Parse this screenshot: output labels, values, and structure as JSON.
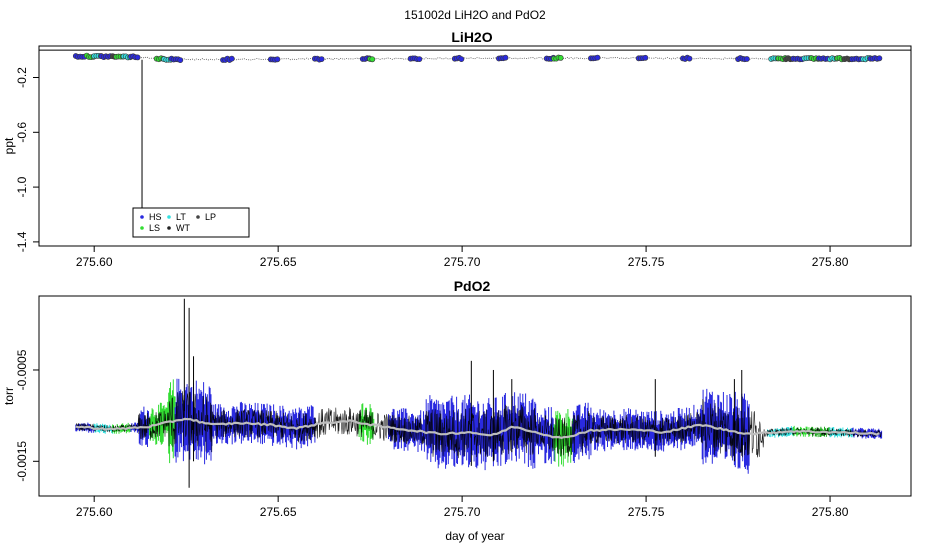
{
  "figure": {
    "title": "151002d   LiH2O and PdO2"
  },
  "chart_data": [
    {
      "type": "scatter",
      "title": "LiH2O",
      "xlabel": "",
      "ylabel": "ppt",
      "xlim": [
        275.585,
        275.822
      ],
      "ylim": [
        -1.43,
        0.03
      ],
      "yticks": [
        -0.2,
        -0.6,
        -1.0,
        -1.4
      ],
      "xticks": [
        275.6,
        275.65,
        275.7,
        275.75,
        275.8
      ],
      "xtick_labels": [
        "275.60",
        "275.65",
        "275.70",
        "275.75",
        "275.80"
      ],
      "ytick_labels": [
        "-0.2",
        "-0.6",
        "-1.0",
        "-1.4"
      ],
      "hline_y": 0.0,
      "spike": {
        "x": 275.613,
        "y_from": -0.07,
        "y_to": -1.36
      },
      "baseline": [
        {
          "x": 275.595,
          "y": -0.045
        },
        {
          "x": 275.605,
          "y": -0.047
        },
        {
          "x": 275.612,
          "y": -0.05
        },
        {
          "x": 275.618,
          "y": -0.065
        },
        {
          "x": 275.625,
          "y": -0.068
        },
        {
          "x": 275.64,
          "y": -0.067
        },
        {
          "x": 275.66,
          "y": -0.064
        },
        {
          "x": 275.68,
          "y": -0.062
        },
        {
          "x": 275.7,
          "y": -0.06
        },
        {
          "x": 275.72,
          "y": -0.059
        },
        {
          "x": 275.74,
          "y": -0.059
        },
        {
          "x": 275.76,
          "y": -0.06
        },
        {
          "x": 275.78,
          "y": -0.062
        },
        {
          "x": 275.8,
          "y": -0.062
        },
        {
          "x": 275.814,
          "y": -0.063
        }
      ],
      "segments": [
        {
          "series": "HS",
          "from": 275.595,
          "to": 275.598
        },
        {
          "series": "LS",
          "from": 275.598,
          "to": 275.6
        },
        {
          "series": "LT",
          "from": 275.6,
          "to": 275.602
        },
        {
          "series": "HS",
          "from": 275.602,
          "to": 275.605
        },
        {
          "series": "LP",
          "from": 275.605,
          "to": 275.606
        },
        {
          "series": "LS",
          "from": 275.606,
          "to": 275.608
        },
        {
          "series": "LT",
          "from": 275.608,
          "to": 275.61
        },
        {
          "series": "HS",
          "from": 275.61,
          "to": 275.612
        },
        {
          "series": "LS",
          "from": 275.617,
          "to": 275.619
        },
        {
          "series": "LT",
          "from": 275.619,
          "to": 275.621
        },
        {
          "series": "HS",
          "from": 275.621,
          "to": 275.624
        },
        {
          "series": "HS",
          "from": 275.635,
          "to": 275.638
        },
        {
          "series": "HS",
          "from": 275.648,
          "to": 275.65
        },
        {
          "series": "HS",
          "from": 275.66,
          "to": 275.662
        },
        {
          "series": "HS",
          "from": 275.673,
          "to": 275.675
        },
        {
          "series": "LS",
          "from": 275.675,
          "to": 275.676
        },
        {
          "series": "HS",
          "from": 275.686,
          "to": 275.689
        },
        {
          "series": "HS",
          "from": 275.698,
          "to": 275.7
        },
        {
          "series": "HS",
          "from": 275.71,
          "to": 275.712
        },
        {
          "series": "HS",
          "from": 275.723,
          "to": 275.725
        },
        {
          "series": "LS",
          "from": 275.725,
          "to": 275.727
        },
        {
          "series": "HS",
          "from": 275.735,
          "to": 275.737
        },
        {
          "series": "HS",
          "from": 275.748,
          "to": 275.75
        },
        {
          "series": "HS",
          "from": 275.76,
          "to": 275.762
        },
        {
          "series": "HS",
          "from": 275.775,
          "to": 275.778
        },
        {
          "series": "LT",
          "from": 275.784,
          "to": 275.786
        },
        {
          "series": "LS",
          "from": 275.786,
          "to": 275.788
        },
        {
          "series": "LP",
          "from": 275.788,
          "to": 275.79
        },
        {
          "series": "HS",
          "from": 275.79,
          "to": 275.793
        },
        {
          "series": "LT",
          "from": 275.793,
          "to": 275.795
        },
        {
          "series": "LS",
          "from": 275.795,
          "to": 275.797
        },
        {
          "series": "HS",
          "from": 275.797,
          "to": 275.8
        },
        {
          "series": "LT",
          "from": 275.8,
          "to": 275.802
        },
        {
          "series": "LS",
          "from": 275.802,
          "to": 275.804
        },
        {
          "series": "LP",
          "from": 275.804,
          "to": 275.806
        },
        {
          "series": "HS",
          "from": 275.806,
          "to": 275.809
        },
        {
          "series": "LT",
          "from": 275.809,
          "to": 275.811
        },
        {
          "series": "HS",
          "from": 275.811,
          "to": 275.814
        }
      ],
      "legend": {
        "position": "bottom-left",
        "entries": [
          {
            "label": "HS",
            "color": "#2a2ae0"
          },
          {
            "label": "LS",
            "color": "#33dd33"
          },
          {
            "label": "LT",
            "color": "#33e0e0"
          },
          {
            "label": "WT",
            "color": "#222222"
          },
          {
            "label": "LP",
            "color": "#444444"
          }
        ]
      }
    },
    {
      "type": "line",
      "title": "PdO2",
      "xlabel": "day of year",
      "ylabel": "torr",
      "xlim": [
        275.585,
        275.822
      ],
      "ylim": [
        -0.00188,
        0.00031
      ],
      "yticks": [
        -0.0005,
        -0.0015
      ],
      "ytick_labels": [
        "-0.0005",
        "-0.0015"
      ],
      "xticks": [
        275.6,
        275.65,
        275.7,
        275.75,
        275.8
      ],
      "xtick_labels": [
        "275.60",
        "275.65",
        "275.70",
        "275.75",
        "275.80"
      ],
      "colored_segments": [
        {
          "from": 275.595,
          "to": 275.6,
          "color": "#2a2ae0"
        },
        {
          "from": 275.6,
          "to": 275.605,
          "color": "#33e0e0"
        },
        {
          "from": 275.605,
          "to": 275.61,
          "color": "#33dd33"
        },
        {
          "from": 275.61,
          "to": 275.615,
          "color": "#2a2ae0"
        },
        {
          "from": 275.615,
          "to": 275.622,
          "color": "#33dd33"
        },
        {
          "from": 275.622,
          "to": 275.66,
          "color": "#2a2ae0"
        },
        {
          "from": 275.672,
          "to": 275.676,
          "color": "#33dd33"
        },
        {
          "from": 275.68,
          "to": 275.725,
          "color": "#2a2ae0"
        },
        {
          "from": 275.725,
          "to": 275.73,
          "color": "#33dd33"
        },
        {
          "from": 275.73,
          "to": 275.778,
          "color": "#2a2ae0"
        },
        {
          "from": 275.783,
          "to": 275.79,
          "color": "#33e0e0"
        },
        {
          "from": 275.79,
          "to": 275.795,
          "color": "#33dd33"
        },
        {
          "from": 275.795,
          "to": 275.8,
          "color": "#22aa22"
        },
        {
          "from": 275.8,
          "to": 275.806,
          "color": "#33e0e0"
        },
        {
          "from": 275.806,
          "to": 275.814,
          "color": "#2a2ae0"
        }
      ],
      "mean_curve": [
        {
          "x": 275.595,
          "y": -0.00112
        },
        {
          "x": 275.605,
          "y": -0.00115
        },
        {
          "x": 275.615,
          "y": -0.00112
        },
        {
          "x": 275.625,
          "y": -0.00103
        },
        {
          "x": 275.632,
          "y": -0.0011
        },
        {
          "x": 275.64,
          "y": -0.00108
        },
        {
          "x": 275.648,
          "y": -0.0011
        },
        {
          "x": 275.655,
          "y": -0.00114
        },
        {
          "x": 275.662,
          "y": -0.00108
        },
        {
          "x": 275.67,
          "y": -0.00106
        },
        {
          "x": 275.678,
          "y": -0.00112
        },
        {
          "x": 275.686,
          "y": -0.00116
        },
        {
          "x": 275.694,
          "y": -0.0012
        },
        {
          "x": 275.702,
          "y": -0.00118
        },
        {
          "x": 275.708,
          "y": -0.00122
        },
        {
          "x": 275.714,
          "y": -0.00112
        },
        {
          "x": 275.72,
          "y": -0.00118
        },
        {
          "x": 275.727,
          "y": -0.00125
        },
        {
          "x": 275.735,
          "y": -0.00116
        },
        {
          "x": 275.745,
          "y": -0.00115
        },
        {
          "x": 275.755,
          "y": -0.00118
        },
        {
          "x": 275.765,
          "y": -0.0011
        },
        {
          "x": 275.772,
          "y": -0.00116
        },
        {
          "x": 275.778,
          "y": -0.0012
        },
        {
          "x": 275.79,
          "y": -0.00117
        },
        {
          "x": 275.8,
          "y": -0.00118
        },
        {
          "x": 275.814,
          "y": -0.0012
        }
      ],
      "spikes": [
        {
          "x": 275.6245,
          "y_from": -0.00095,
          "y_to": 0.00028
        },
        {
          "x": 275.6258,
          "y_from": -0.00179,
          "y_to": 0.00018
        },
        {
          "x": 275.627,
          "y_from": -0.0015,
          "y_to": -0.00035
        },
        {
          "x": 275.7025,
          "y_from": -0.00155,
          "y_to": -0.0004
        },
        {
          "x": 275.7085,
          "y_from": -0.0015,
          "y_to": -0.0005
        },
        {
          "x": 275.7135,
          "y_from": -0.0014,
          "y_to": -0.0006
        },
        {
          "x": 275.7525,
          "y_from": -0.00145,
          "y_to": -0.0006
        },
        {
          "x": 275.774,
          "y_from": -0.0015,
          "y_to": -0.0006
        },
        {
          "x": 275.776,
          "y_from": -0.0014,
          "y_to": -0.0005
        }
      ]
    }
  ]
}
